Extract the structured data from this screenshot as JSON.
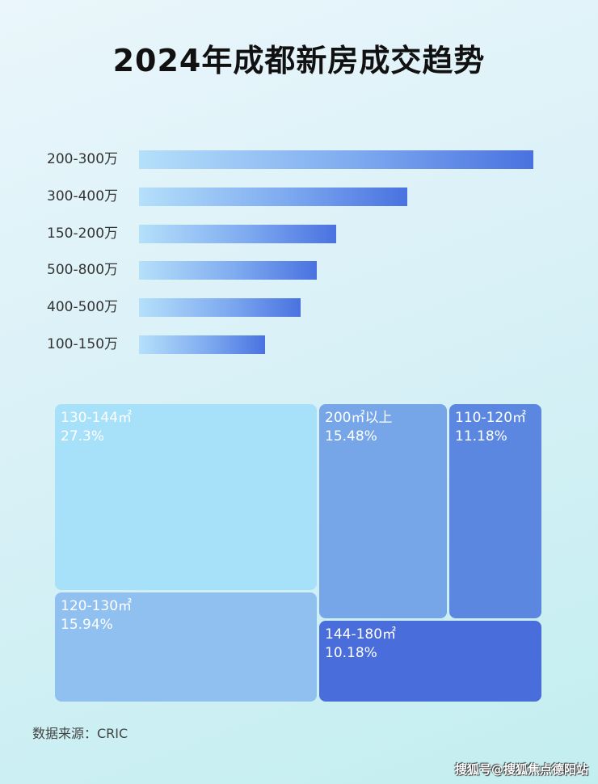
{
  "chart_data": [
    {
      "type": "bar",
      "orientation": "horizontal",
      "title": "2024年成都新房成交趋势",
      "categories": [
        "200-300万",
        "300-400万",
        "150-200万",
        "500-800万",
        "400-500万",
        "100-150万"
      ],
      "values": [
        100,
        68,
        50,
        45,
        41,
        32
      ],
      "value_note": "relative bar lengths, no axis printed",
      "colors": [
        "#b5e0fa",
        "#4a72e0"
      ]
    },
    {
      "type": "treemap",
      "cells": [
        {
          "label": "130-144㎡",
          "value": "27.3%",
          "color": "#a6e0f9"
        },
        {
          "label": "120-130㎡",
          "value": "15.94%",
          "color": "#8fc0f0"
        },
        {
          "label": "200㎡以上",
          "value": "15.48%",
          "color": "#76a6e7"
        },
        {
          "label": "110-120㎡",
          "value": "11.18%",
          "color": "#5b87e1"
        },
        {
          "label": "144-180㎡",
          "value": "10.18%",
          "color": "#4a6ddc"
        }
      ]
    }
  ],
  "source": "数据来源：CRIC",
  "watermark": "搜狐号@搜狐焦点德阳站"
}
